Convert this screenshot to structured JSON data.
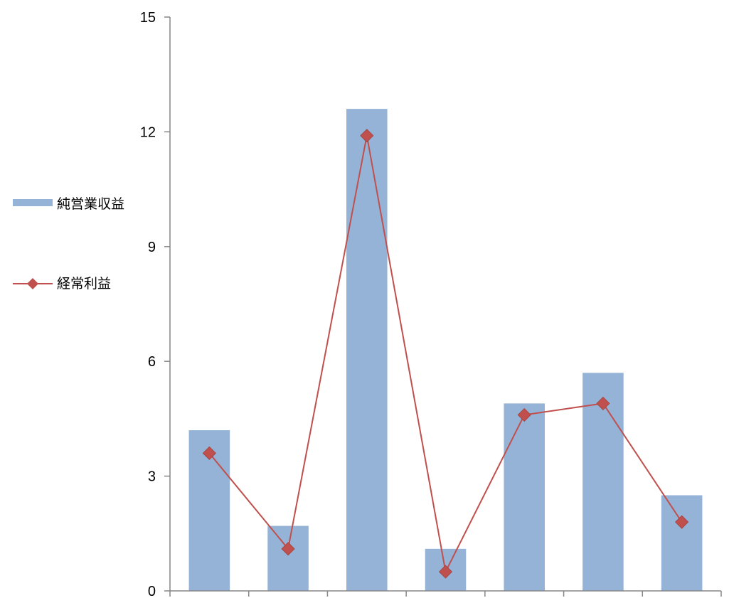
{
  "chart_data": {
    "type": "bar",
    "categories": [
      "",
      "",
      "",
      "",
      "",
      "",
      ""
    ],
    "series": [
      {
        "name": "純営業収益",
        "kind": "bar",
        "color": "#95B3D7",
        "values": [
          4.2,
          1.7,
          12.6,
          1.1,
          4.9,
          5.7,
          2.5
        ]
      },
      {
        "name": "経常利益",
        "kind": "line",
        "marker": "diamond",
        "color": "#C0504D",
        "values": [
          3.6,
          1.1,
          11.9,
          0.5,
          4.6,
          4.9,
          1.8
        ]
      }
    ],
    "ylim": [
      0,
      15
    ],
    "yticks": [
      "0",
      "3",
      "6",
      "9",
      "12",
      "15"
    ],
    "ytick_values": [
      0,
      3,
      6,
      9,
      12,
      15
    ],
    "grid": false,
    "legend_position": "left"
  }
}
